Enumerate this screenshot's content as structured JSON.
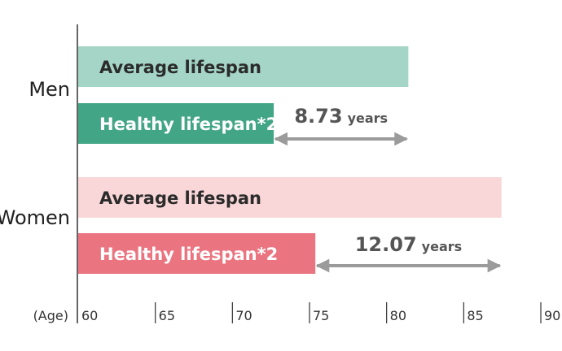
{
  "chart_data": {
    "type": "bar",
    "orientation": "horizontal",
    "title": "",
    "xlabel": "",
    "axis_unit_label": "(Age)",
    "xlim": [
      60,
      90
    ],
    "ticks": [
      "60",
      "65",
      "70",
      "75",
      "80",
      "85",
      "90"
    ],
    "tick_values": [
      60,
      65,
      70,
      75,
      80,
      85,
      90
    ],
    "groups": [
      {
        "name": "Men",
        "bars": [
          {
            "label": "Average lifespan",
            "value": 81.41,
            "color": "#a4d5c6",
            "text_color": "#2b2b2b"
          },
          {
            "label": "Healthy lifespan*2",
            "value": 72.68,
            "color": "#42a585",
            "text_color": "#ffffff"
          }
        ],
        "difference": {
          "value": "8.73",
          "unit": "years",
          "from": 72.68,
          "to": 81.41
        }
      },
      {
        "name": "Women",
        "bars": [
          {
            "label": "Average lifespan",
            "value": 87.45,
            "color": "#f9d7d8",
            "text_color": "#2b2b2b"
          },
          {
            "label": "Healthy lifespan*2",
            "value": 75.38,
            "color": "#ea7580",
            "text_color": "#ffffff"
          }
        ],
        "difference": {
          "value": "12.07",
          "unit": "years",
          "from": 75.38,
          "to": 87.45
        }
      }
    ],
    "grid": false,
    "legend": "none"
  },
  "colors": {
    "axis": "#333333",
    "arrow": "#9b9b9b"
  }
}
